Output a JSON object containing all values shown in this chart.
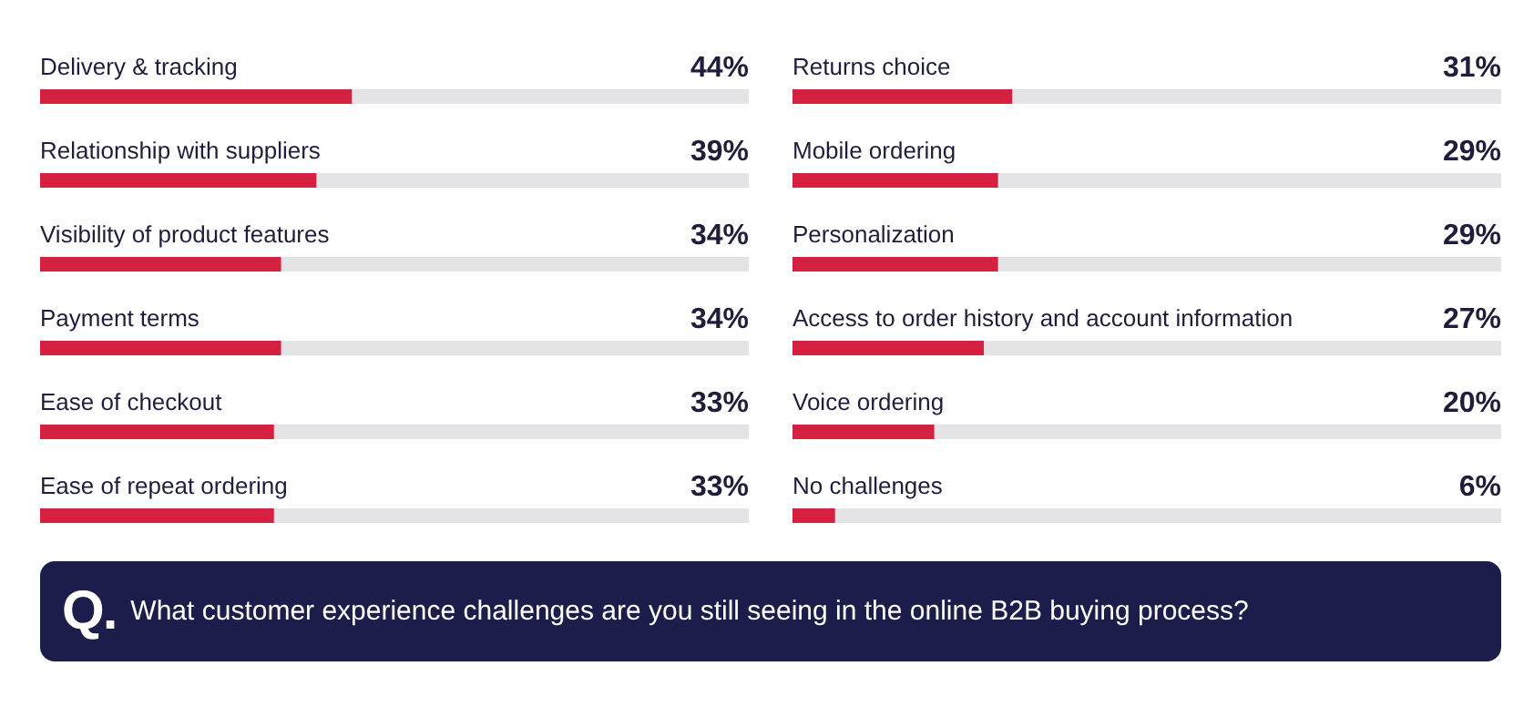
{
  "chart_data": [
    {
      "type": "bar",
      "orientation": "horizontal",
      "categories": [
        "Delivery & tracking",
        "Relationship with suppliers",
        "Visibility of product features",
        "Payment terms",
        "Ease of checkout",
        "Ease of repeat ordering"
      ],
      "values": [
        44,
        39,
        34,
        34,
        33,
        33
      ],
      "value_labels": [
        "44%",
        "39%",
        "34%",
        "34%",
        "33%",
        "33%"
      ],
      "color": "#d6203f",
      "xlim": [
        0,
        100
      ],
      "tick_labels": false
    },
    {
      "type": "bar",
      "orientation": "horizontal",
      "categories": [
        "Returns choice",
        "Mobile ordering",
        "Personalization",
        "Access to order history and account information",
        "Voice ordering",
        "No challenges"
      ],
      "values": [
        31,
        29,
        29,
        27,
        20,
        6
      ],
      "value_labels": [
        "31%",
        "29%",
        "29%",
        "27%",
        "20%",
        "6%"
      ],
      "color": "#d6203f",
      "xlim": [
        0,
        100
      ],
      "tick_labels": false,
      "annotations": [
        "Q.",
        "What customer experience challenges are you still seeing in the online B2B buying process?"
      ]
    }
  ]
}
